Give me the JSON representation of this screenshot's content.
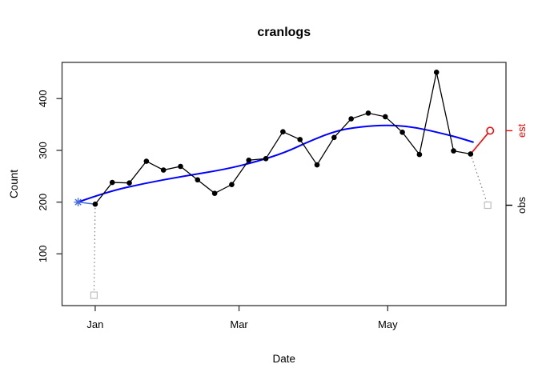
{
  "chart_data": {
    "type": "line",
    "title": "cranlogs",
    "xlabel": "Date",
    "ylabel": "Count",
    "x_axis": {
      "tick_days": [
        0,
        59,
        120
      ],
      "tick_labels": [
        "Jan",
        "Mar",
        "May"
      ],
      "domain_days": [
        -13.6,
        168.5
      ]
    },
    "y_axis": {
      "ticks": [
        100,
        200,
        300,
        400
      ],
      "range": [
        0,
        470
      ]
    },
    "grid": false,
    "legend": "none",
    "series": [
      {
        "name": "observed weekly counts",
        "style": "line-points",
        "color": "#000000",
        "days": [
          0,
          7,
          14,
          21,
          28,
          35,
          42,
          49,
          56,
          63,
          70,
          77,
          84,
          91,
          98,
          105,
          112,
          119,
          126,
          133,
          140,
          147,
          154
        ],
        "values": [
          196,
          238,
          237,
          279,
          262,
          269,
          243,
          217,
          234,
          281,
          284,
          336,
          321,
          272,
          325,
          361,
          372,
          365,
          335,
          292,
          451,
          299,
          293
        ]
      },
      {
        "name": "smooth trend (lowess)",
        "style": "smooth-line",
        "color": "#0000ff",
        "points": [
          [
            -7,
            200
          ],
          [
            5,
            220
          ],
          [
            20,
            236
          ],
          [
            36,
            250
          ],
          [
            53,
            263
          ],
          [
            66,
            278
          ],
          [
            78,
            296
          ],
          [
            88,
            318
          ],
          [
            100,
            340
          ],
          [
            112,
            347
          ],
          [
            122,
            349
          ],
          [
            132,
            344
          ],
          [
            142,
            333
          ],
          [
            148,
            326
          ],
          [
            155,
            316
          ]
        ]
      },
      {
        "name": "imputed start estimate",
        "style": "asterisk-with-segment",
        "color": "#4169e1",
        "marker": [
          -7,
          200
        ],
        "segment_to": [
          0,
          196
        ]
      },
      {
        "name": "estimated next value",
        "style": "open-circle-with-segment",
        "color": "#ff0000",
        "marker": [
          162,
          338
        ],
        "segment_from": [
          154,
          293
        ]
      },
      {
        "name": "raw outlier observations",
        "style": "open-squares-dotted",
        "color": "#bebebe",
        "dotted_color": "#777777",
        "markers": [
          [
            -0.5,
            20
          ],
          [
            161,
            194
          ]
        ],
        "dotted_segments": [
          [
            [
              0,
              196
            ],
            [
              -0.5,
              20
            ]
          ],
          [
            [
              154,
              293
            ],
            [
              161,
              194
            ]
          ]
        ]
      }
    ],
    "right_axis_labels": [
      {
        "label": "est",
        "value": 338,
        "color": "#ff0000"
      },
      {
        "label": "obs",
        "value": 194,
        "color": "#000000"
      }
    ]
  }
}
